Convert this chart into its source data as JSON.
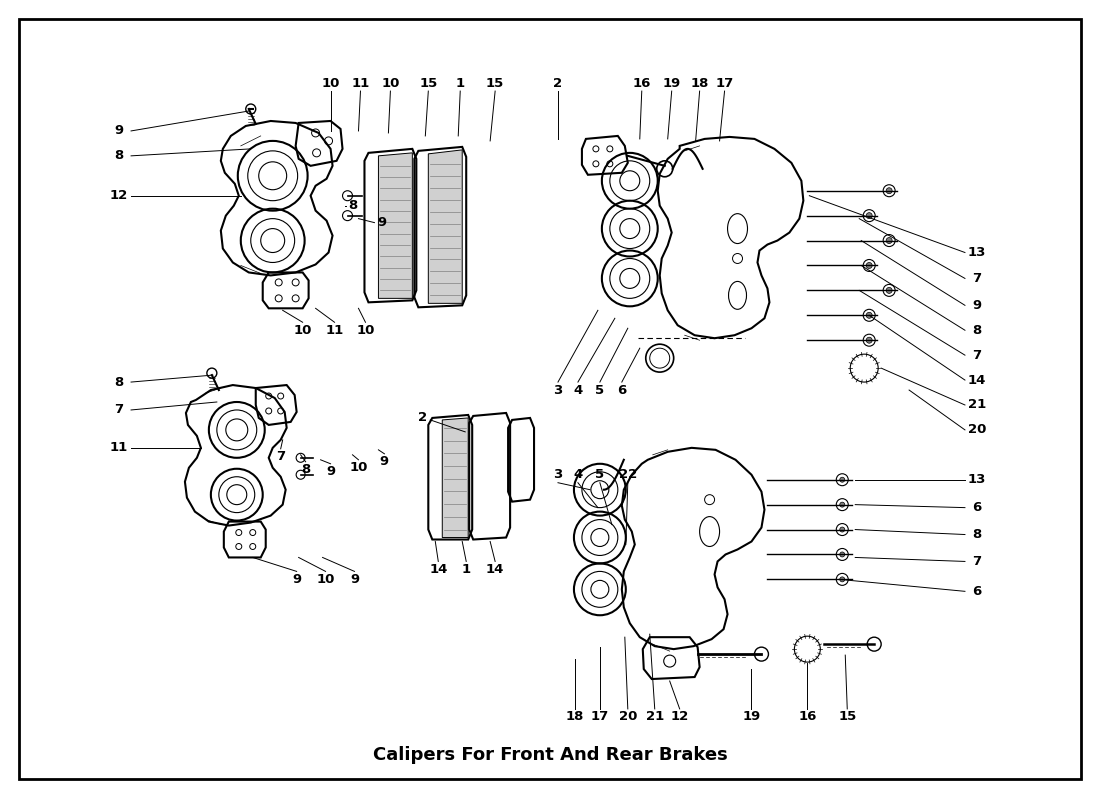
{
  "title": "Calipers For Front And Rear Brakes",
  "bg_color": "#ffffff",
  "line_color": "#000000",
  "fig_width": 11.0,
  "fig_height": 8.0,
  "dpi": 100
}
